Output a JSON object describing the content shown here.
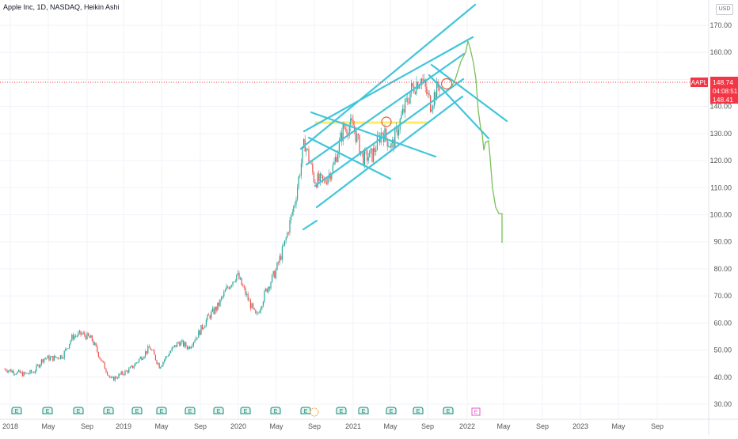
{
  "header": {
    "title": "Apple Inc, 1D, NASDAQ, Heikin Ashi",
    "currency": "USD"
  },
  "price_axis": {
    "labels": [
      "170.00",
      "160.00",
      "150.00",
      "140.00",
      "130.00",
      "120.00",
      "110.00",
      "100.00",
      "90.00",
      "80.00",
      "70.00",
      "60.00",
      "50.00",
      "40.00",
      "30.00"
    ]
  },
  "time_axis": {
    "labels": [
      "2018",
      "May",
      "Sep",
      "2019",
      "May",
      "Sep",
      "2020",
      "May",
      "Sep",
      "2021",
      "May",
      "Sep",
      "2022",
      "May",
      "Sep",
      "2023",
      "May",
      "Sep"
    ]
  },
  "price_badges": {
    "symbol": "AAPL",
    "last_price": "148.74",
    "countdown": "04:08:51",
    "secondary_price": "148.41"
  },
  "earnings_marker": {
    "label": "E"
  },
  "colors": {
    "up": "#26a69a",
    "down": "#ef5350",
    "channel": "#41c6d9",
    "support": "#ffe74c",
    "projection": "#7cbf5a",
    "price_line": "#f23645",
    "earnings_past": "#138a74",
    "earnings_future": "#e05bc6",
    "circle": "#e0623a"
  },
  "chart_data": {
    "type": "candlestick",
    "ylim": [
      25,
      180
    ],
    "points": [
      {
        "x": "2018-01",
        "y": 43
      },
      {
        "x": "2018-02",
        "y": 42
      },
      {
        "x": "2018-03",
        "y": 41
      },
      {
        "x": "2018-04",
        "y": 42
      },
      {
        "x": "2018-05",
        "y": 47
      },
      {
        "x": "2018-06",
        "y": 47
      },
      {
        "x": "2018-07",
        "y": 48
      },
      {
        "x": "2018-08",
        "y": 55
      },
      {
        "x": "2018-09",
        "y": 56
      },
      {
        "x": "2018-10",
        "y": 54
      },
      {
        "x": "2018-11",
        "y": 46
      },
      {
        "x": "2018-12",
        "y": 39
      },
      {
        "x": "2019-01",
        "y": 41
      },
      {
        "x": "2019-02",
        "y": 43
      },
      {
        "x": "2019-03",
        "y": 47
      },
      {
        "x": "2019-04",
        "y": 51
      },
      {
        "x": "2019-05",
        "y": 44
      },
      {
        "x": "2019-06",
        "y": 49
      },
      {
        "x": "2019-07",
        "y": 53
      },
      {
        "x": "2019-08",
        "y": 51
      },
      {
        "x": "2019-09",
        "y": 56
      },
      {
        "x": "2019-10",
        "y": 62
      },
      {
        "x": "2019-11",
        "y": 66
      },
      {
        "x": "2019-12",
        "y": 73
      },
      {
        "x": "2020-01",
        "y": 78
      },
      {
        "x": "2020-02",
        "y": 70
      },
      {
        "x": "2020-03",
        "y": 62
      },
      {
        "x": "2020-04",
        "y": 72
      },
      {
        "x": "2020-05",
        "y": 79
      },
      {
        "x": "2020-06",
        "y": 90
      },
      {
        "x": "2020-07",
        "y": 105
      },
      {
        "x": "2020-08",
        "y": 127
      },
      {
        "x": "2020-09",
        "y": 113
      },
      {
        "x": "2020-10",
        "y": 112
      },
      {
        "x": "2020-11",
        "y": 118
      },
      {
        "x": "2020-12",
        "y": 132
      },
      {
        "x": "2021-01",
        "y": 133
      },
      {
        "x": "2021-02",
        "y": 121
      },
      {
        "x": "2021-03",
        "y": 122
      },
      {
        "x": "2021-04",
        "y": 131
      },
      {
        "x": "2021-05",
        "y": 125
      },
      {
        "x": "2021-06",
        "y": 136
      },
      {
        "x": "2021-07",
        "y": 146
      },
      {
        "x": "2021-08",
        "y": 151
      },
      {
        "x": "2021-09",
        "y": 141
      },
      {
        "x": "2021-10",
        "y": 148.74
      }
    ],
    "projection": [
      {
        "x": "2021-10",
        "y": 148.74
      },
      {
        "x": "2021-11",
        "y": 158
      },
      {
        "x": "2021-12",
        "y": 166
      },
      {
        "x": "2022-01",
        "y": 150
      },
      {
        "x": "2022-02",
        "y": 128
      },
      {
        "x": "2022-03",
        "y": 105
      },
      {
        "x": "2022-04",
        "y": 99
      },
      {
        "x": "2022-04",
        "y": 90
      }
    ],
    "last_price": 148.74
  }
}
